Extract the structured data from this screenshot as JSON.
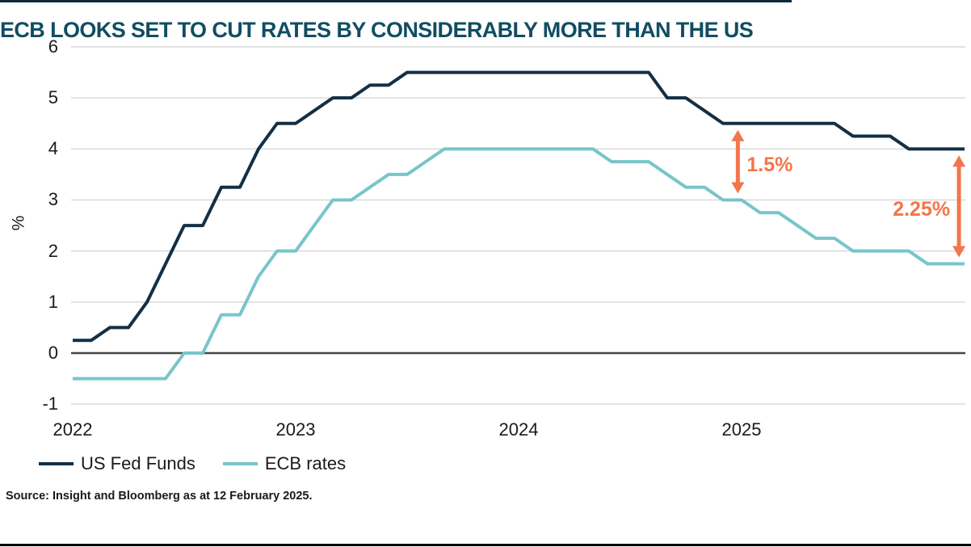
{
  "page": {
    "rule_color": "#0e2a3a",
    "bottom_rule_color": "#000000",
    "title_color": "#114d62",
    "source": "Source: Insight and Bloomberg as at 12 February 2025."
  },
  "chart_data": {
    "type": "line",
    "title": "ECB LOOKS SET TO CUT RATES BY CONSIDERABLY MORE THAN THE US",
    "xlabel": "",
    "ylabel": "%",
    "ylim": [
      -1,
      6
    ],
    "yticks": [
      6,
      5,
      4,
      3,
      2,
      1,
      0,
      -1
    ],
    "grid": "horizontal-only",
    "gridline_color": "#d9d9d9",
    "zero_line_color": "#474747",
    "x_unit": "months since Jan 2022",
    "xlim_months": [
      0,
      48
    ],
    "x_year_ticks": [
      {
        "label": "2022",
        "month": 0
      },
      {
        "label": "2023",
        "month": 12
      },
      {
        "label": "2024",
        "month": 24
      },
      {
        "label": "2025",
        "month": 36
      }
    ],
    "legend_position": "bottom-left",
    "series": [
      {
        "name": "US Fed Funds",
        "color": "#132f45",
        "monthly_values": [
          0.25,
          0.25,
          0.5,
          0.5,
          1.0,
          1.75,
          2.5,
          2.5,
          3.25,
          3.25,
          4.0,
          4.5,
          4.5,
          4.75,
          5.0,
          5.0,
          5.25,
          5.25,
          5.5,
          5.5,
          5.5,
          5.5,
          5.5,
          5.5,
          5.5,
          5.5,
          5.5,
          5.5,
          5.5,
          5.5,
          5.5,
          5.5,
          5.0,
          5.0,
          4.75,
          4.5,
          4.5,
          4.5,
          4.5,
          4.5,
          4.5,
          4.5,
          4.25,
          4.25,
          4.25,
          4.0,
          4.0,
          4.0,
          4.0
        ]
      },
      {
        "name": "ECB rates",
        "color": "#78c5cb",
        "monthly_values": [
          -0.5,
          -0.5,
          -0.5,
          -0.5,
          -0.5,
          -0.5,
          0.0,
          0.0,
          0.75,
          0.75,
          1.5,
          2.0,
          2.0,
          2.5,
          3.0,
          3.0,
          3.25,
          3.5,
          3.5,
          3.75,
          4.0,
          4.0,
          4.0,
          4.0,
          4.0,
          4.0,
          4.0,
          4.0,
          4.0,
          3.75,
          3.75,
          3.75,
          3.5,
          3.25,
          3.25,
          3.0,
          3.0,
          2.75,
          2.75,
          2.5,
          2.25,
          2.25,
          2.0,
          2.0,
          2.0,
          2.0,
          1.75,
          1.75,
          1.75
        ]
      }
    ],
    "annotations": [
      {
        "label": "1.5%",
        "month": 35.8,
        "from_value": 4.5,
        "to_value": 3.0,
        "color": "#f3764a",
        "label_side": "right"
      },
      {
        "label": "2.25%",
        "month": 47.7,
        "from_value": 4.0,
        "to_value": 1.75,
        "color": "#f3764a",
        "label_side": "left"
      }
    ]
  }
}
